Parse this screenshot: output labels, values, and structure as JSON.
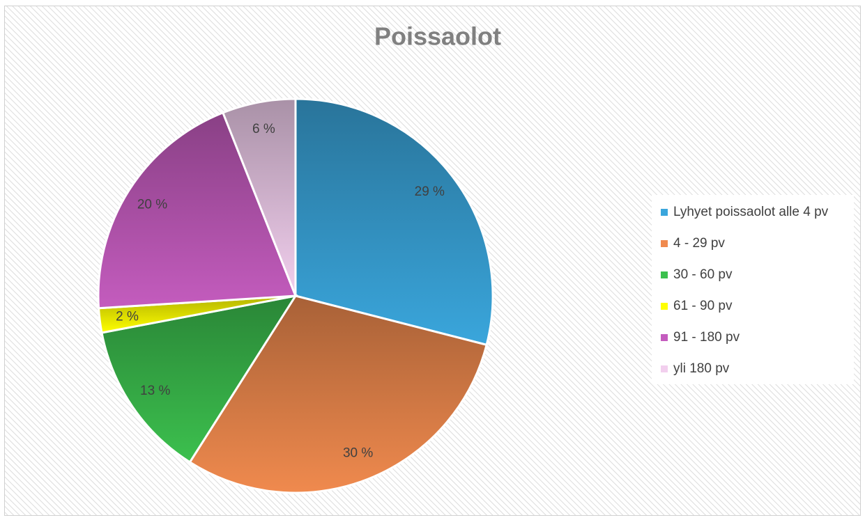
{
  "chart_data": {
    "type": "pie",
    "title": "Poissaolot",
    "categories": [
      "Lyhyet poissaolot alle 4 pv",
      "4 - 29 pv",
      "30 - 60 pv",
      "61 - 90 pv",
      "91 - 180 pv",
      "yli 180 pv"
    ],
    "values": [
      29,
      30,
      13,
      2,
      20,
      6
    ],
    "value_labels": [
      "29 %",
      "30 %",
      "13 %",
      "2 %",
      "20 %",
      "6 %"
    ],
    "colors": [
      "#3aa6dc",
      "#f08a4e",
      "#3cc04e",
      "#ffff00",
      "#c45cbe",
      "#f2cfee"
    ],
    "legend": "right"
  }
}
